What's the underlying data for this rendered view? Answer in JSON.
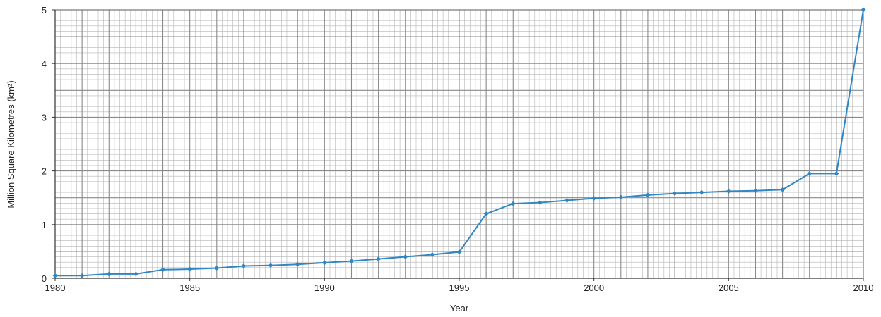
{
  "chart_data": {
    "type": "line",
    "title": "",
    "xlabel": "Year",
    "ylabel": "Million Square Kilometres (km²)",
    "xlim": [
      1980,
      2010
    ],
    "ylim": [
      0,
      5
    ],
    "x_ticks": [
      "1980",
      "1985",
      "1990",
      "1995",
      "2000",
      "2005",
      "2010"
    ],
    "y_ticks": [
      "0",
      "1",
      "2",
      "3",
      "4",
      "5"
    ],
    "grid": true,
    "legend": "none",
    "series": [
      {
        "color": "#2f86c5",
        "x": [
          1980,
          1981,
          1982,
          1983,
          1984,
          1985,
          1986,
          1987,
          1988,
          1989,
          1990,
          1991,
          1992,
          1993,
          1994,
          1995,
          1996,
          1997,
          1998,
          1999,
          2000,
          2001,
          2002,
          2003,
          2004,
          2005,
          2006,
          2007,
          2008,
          2009,
          2010
        ],
        "y": [
          0.05,
          0.05,
          0.08,
          0.08,
          0.16,
          0.17,
          0.19,
          0.23,
          0.24,
          0.26,
          0.29,
          0.32,
          0.36,
          0.4,
          0.44,
          0.49,
          1.2,
          1.39,
          1.41,
          1.45,
          1.49,
          1.51,
          1.55,
          1.58,
          1.6,
          1.62,
          1.63,
          1.65,
          1.95,
          1.95,
          5.0
        ]
      }
    ]
  }
}
